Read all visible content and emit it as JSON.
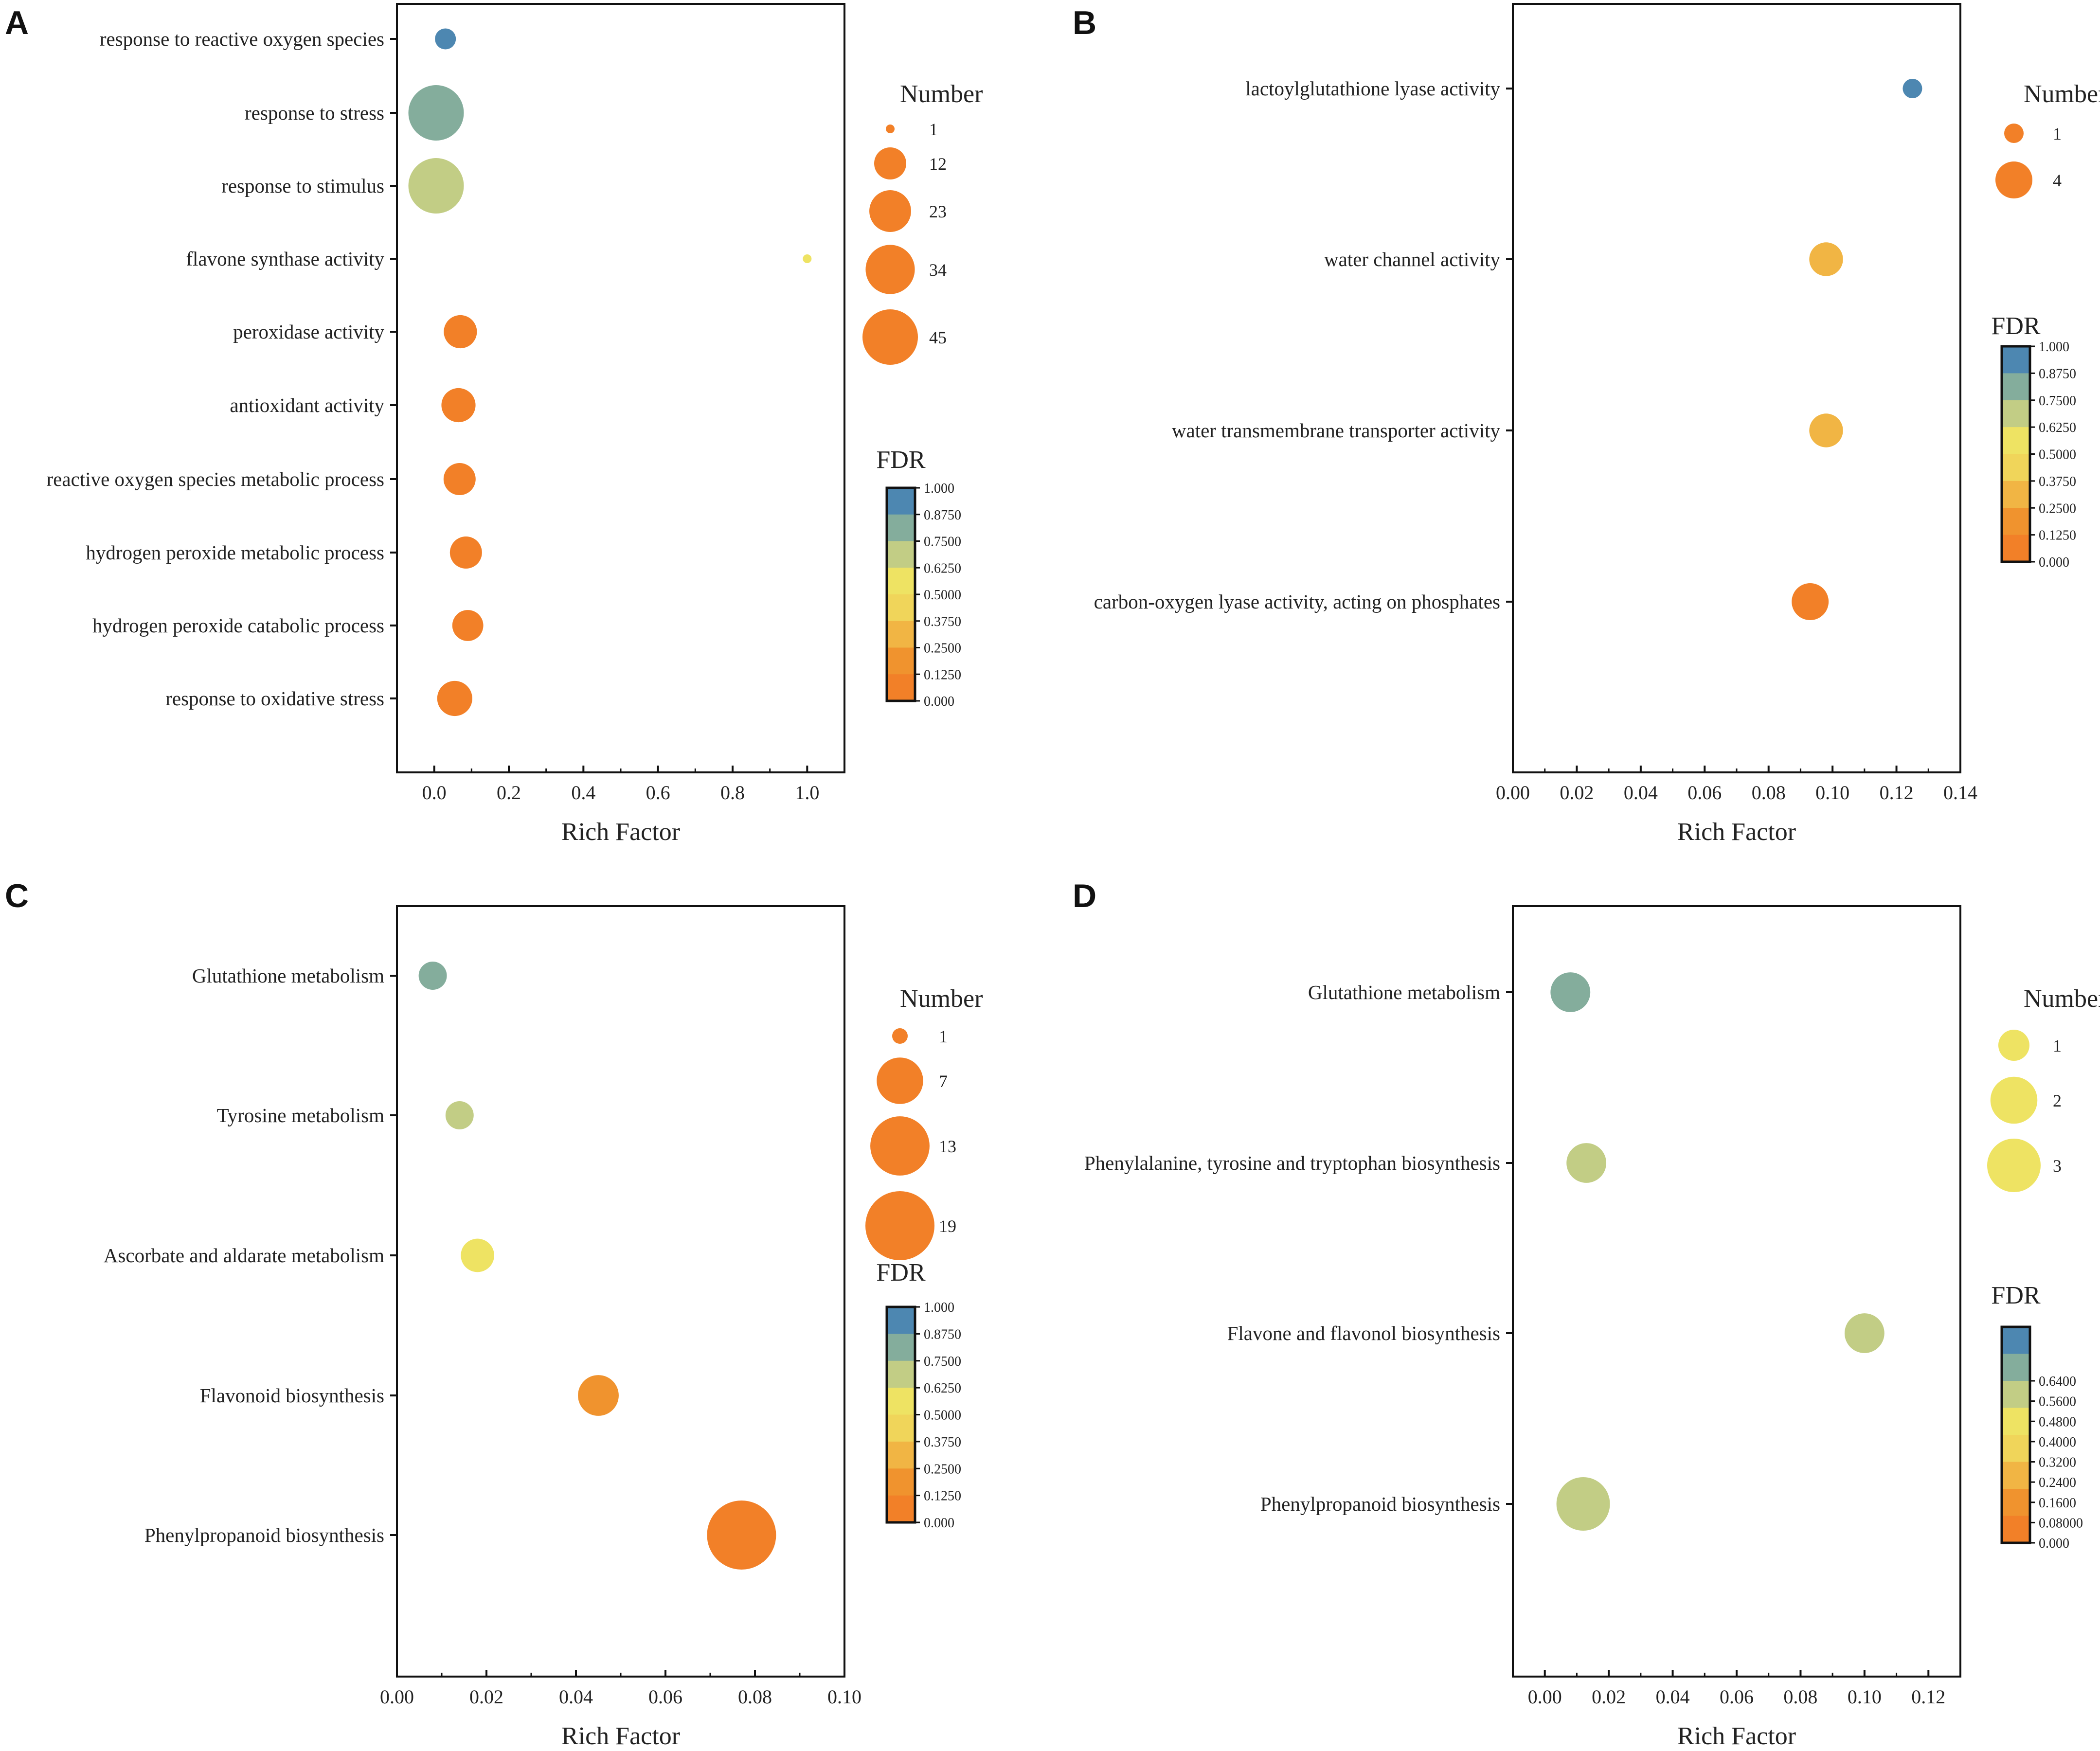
{
  "chart_data": [
    {
      "panel": "A",
      "type": "scatter",
      "subtype": "bubble",
      "categories": [
        "response to reactive oxygen species",
        "response to stress",
        "response to stimulus",
        "flavone synthase activity",
        "peroxidase activity",
        "antioxidant activity",
        "reactive oxygen species metabolic process",
        "hydrogen peroxide metabolic process",
        "hydrogen peroxide catabolic process",
        "response to oxidative stress"
      ],
      "rich_factor": [
        0.03,
        0.005,
        0.005,
        1.0,
        0.07,
        0.065,
        0.068,
        0.085,
        0.09,
        0.055
      ],
      "number": [
        4,
        45,
        45,
        1,
        13,
        14,
        12,
        12,
        11,
        15
      ],
      "fdr": [
        1.0,
        0.82,
        0.7,
        0.5,
        0.02,
        0.02,
        0.02,
        0.02,
        0.02,
        0.02
      ],
      "xlabel": "Rich Factor",
      "xlim": [
        -0.1,
        1.1
      ],
      "xticks": [
        "0.0",
        "0.2",
        "0.4",
        "0.6",
        "0.8",
        "1.0"
      ],
      "xtick_values": [
        0,
        0.2,
        0.4,
        0.6,
        0.8,
        1.0
      ],
      "size_legend": {
        "title": "Number",
        "values": [
          1,
          12,
          23,
          34,
          45
        ],
        "labels": [
          "1",
          "12",
          "23",
          "34",
          "45"
        ]
      },
      "color_legend": {
        "title": "FDR",
        "range": [
          0,
          1
        ],
        "labels": [
          "1.000",
          "0.8750",
          "0.7500",
          "0.6250",
          "0.5000",
          "0.3750",
          "0.2500",
          "0.1250",
          "0.000"
        ]
      }
    },
    {
      "panel": "B",
      "type": "scatter",
      "subtype": "bubble",
      "categories": [
        "lactoylglutathione lyase activity",
        "water channel activity",
        "water transmembrane transporter activity",
        "carbon-oxygen lyase activity, acting on phosphates"
      ],
      "rich_factor": [
        0.125,
        0.098,
        0.098,
        0.093
      ],
      "number": [
        1,
        3,
        3,
        4
      ],
      "fdr": [
        1.0,
        0.27,
        0.27,
        0.02
      ],
      "xlabel": "Rich Factor",
      "xlim": [
        0,
        0.14
      ],
      "xticks": [
        "0.00",
        "0.02",
        "0.04",
        "0.06",
        "0.08",
        "0.10",
        "0.12",
        "0.14"
      ],
      "xtick_values": [
        0,
        0.02,
        0.04,
        0.06,
        0.08,
        0.1,
        0.12,
        0.14
      ],
      "size_legend": {
        "title": "Number",
        "values": [
          1,
          4
        ],
        "labels": [
          "1",
          "4"
        ]
      },
      "color_legend": {
        "title": "FDR",
        "range": [
          0,
          1
        ],
        "labels": [
          "1.000",
          "0.8750",
          "0.7500",
          "0.6250",
          "0.5000",
          "0.3750",
          "0.2500",
          "0.1250",
          "0.000"
        ]
      }
    },
    {
      "panel": "C",
      "type": "scatter",
      "subtype": "bubble",
      "categories": [
        "Glutathione metabolism",
        "Tyrosine metabolism",
        "Ascorbate and aldarate metabolism",
        "Flavonoid biosynthesis",
        "Phenylpropanoid biosynthesis"
      ],
      "rich_factor": [
        0.008,
        0.014,
        0.018,
        0.045,
        0.077
      ],
      "number": [
        2,
        2,
        3,
        5,
        19
      ],
      "fdr": [
        0.83,
        0.7,
        0.5,
        0.22,
        0.02
      ],
      "xlabel": "Rich Factor",
      "xlim": [
        0,
        0.1
      ],
      "xticks": [
        "0.00",
        "0.02",
        "0.04",
        "0.06",
        "0.08",
        "0.10"
      ],
      "xtick_values": [
        0,
        0.02,
        0.04,
        0.06,
        0.08,
        0.1
      ],
      "size_legend": {
        "title": "Number",
        "values": [
          1,
          7,
          13,
          19
        ],
        "labels": [
          "1",
          "7",
          "13",
          "19"
        ]
      },
      "color_legend": {
        "title": "FDR",
        "range": [
          0,
          1
        ],
        "labels": [
          "1.000",
          "0.8750",
          "0.7500",
          "0.6250",
          "0.5000",
          "0.3750",
          "0.2500",
          "0.1250",
          "0.000"
        ]
      }
    },
    {
      "panel": "D",
      "type": "scatter",
      "subtype": "bubble",
      "categories": [
        "Glutathione metabolism",
        "Phenylalanine, tyrosine and tryptophan biosynthesis",
        "Flavone and flavonol biosynthesis",
        "Phenylpropanoid biosynthesis"
      ],
      "rich_factor": [
        0.008,
        0.013,
        0.1,
        0.012
      ],
      "number": [
        1.3,
        1.3,
        1.3,
        3
      ],
      "fdr": [
        0.68,
        0.5,
        0.5,
        0.5
      ],
      "xlabel": "Rich Factor",
      "xlim": [
        -0.01,
        0.13
      ],
      "xticks": [
        "0.00",
        "0.02",
        "0.04",
        "0.06",
        "0.08",
        "0.10",
        "0.12"
      ],
      "xtick_values": [
        0,
        0.02,
        0.04,
        0.06,
        0.08,
        0.1,
        0.12
      ],
      "size_legend": {
        "title": "Number",
        "values": [
          1,
          2,
          3
        ],
        "labels": [
          "1",
          "2",
          "3"
        ]
      },
      "color_legend": {
        "title": "FDR",
        "range": [
          0,
          0.8
        ],
        "labels": [
          "0.6400",
          "0.5600",
          "0.4800",
          "0.4000",
          "0.3200",
          "0.2400",
          "0.1600",
          "0.08000",
          "0.000"
        ]
      }
    }
  ]
}
